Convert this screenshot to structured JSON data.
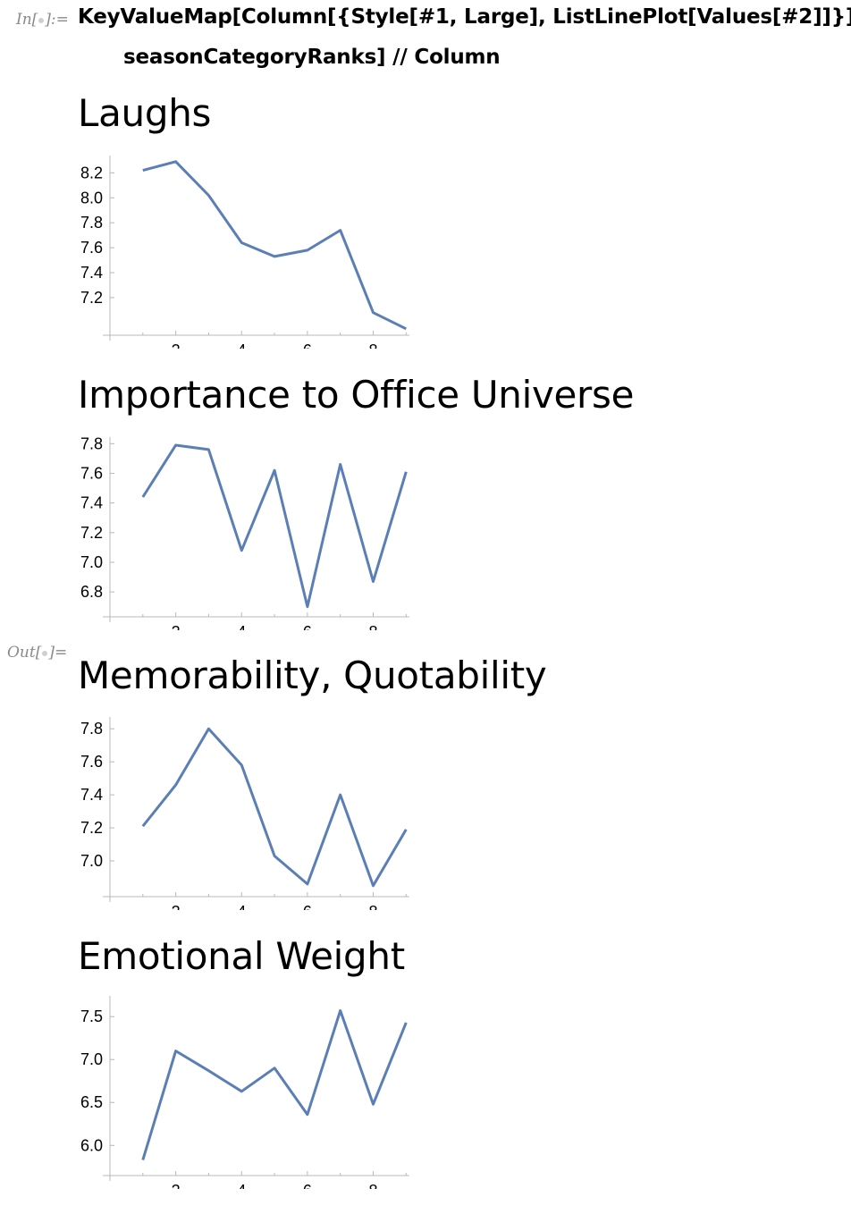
{
  "notebook": {
    "in_label": "In[",
    "in_label_end": "]:=",
    "out_label": "Out[",
    "out_label_end": "]=",
    "input_line1": "KeyValueMap[Column[{Style[#1, Large], ListLinePlot[Values[#2]]}] &,",
    "input_line2": "seasonCategoryRanks] // Column",
    "line_color": "#5b7fb5"
  },
  "chart_data": [
    {
      "type": "line",
      "title": "Laughs",
      "x": [
        1,
        2,
        3,
        4,
        5,
        6,
        7,
        8,
        9
      ],
      "series": [
        {
          "values": [
            8.22,
            8.29,
            8.02,
            7.64,
            7.53,
            7.58,
            7.74,
            7.08,
            6.95
          ]
        }
      ],
      "xticks": [
        "2",
        "4",
        "6",
        "8"
      ],
      "yticks": [
        "7.2",
        "7.4",
        "7.6",
        "7.8",
        "8.0",
        "8.2"
      ],
      "xlim": [
        0,
        9.1
      ],
      "ylim": [
        6.92,
        8.31
      ],
      "grid": false
    },
    {
      "type": "line",
      "title": "Importance to Office Universe",
      "x": [
        1,
        2,
        3,
        4,
        5,
        6,
        7,
        8,
        9
      ],
      "series": [
        {
          "values": [
            7.44,
            7.79,
            7.76,
            7.08,
            7.62,
            6.7,
            7.66,
            6.87,
            7.61
          ]
        }
      ],
      "xticks": [
        "2",
        "4",
        "6",
        "8"
      ],
      "yticks": [
        "6.8",
        "7.0",
        "7.2",
        "7.4",
        "7.6",
        "7.8"
      ],
      "xlim": [
        0,
        9.1
      ],
      "ylim": [
        6.65,
        7.82
      ],
      "grid": false
    },
    {
      "type": "line",
      "title": "Memorability, Quotability",
      "x": [
        1,
        2,
        3,
        4,
        5,
        6,
        7,
        8,
        9
      ],
      "series": [
        {
          "values": [
            7.21,
            7.46,
            7.8,
            7.58,
            7.03,
            6.86,
            7.4,
            6.85,
            7.19
          ]
        }
      ],
      "xticks": [
        "2",
        "4",
        "6",
        "8"
      ],
      "yticks": [
        "7.0",
        "7.2",
        "7.4",
        "7.6",
        "7.8"
      ],
      "xlim": [
        0,
        9.1
      ],
      "ylim": [
        6.8,
        7.85
      ],
      "grid": false
    },
    {
      "type": "line",
      "title": "Emotional Weight",
      "x": [
        1,
        2,
        3,
        4,
        5,
        6,
        7,
        8,
        9
      ],
      "series": [
        {
          "values": [
            5.83,
            7.1,
            6.87,
            6.63,
            6.9,
            6.36,
            7.57,
            6.48,
            7.43
          ]
        }
      ],
      "xticks": [
        "2",
        "4",
        "6",
        "8"
      ],
      "yticks": [
        "6.0",
        "6.5",
        "7.0",
        "7.5"
      ],
      "xlim": [
        0,
        9.1
      ],
      "ylim": [
        5.68,
        7.7
      ],
      "grid": false
    }
  ]
}
